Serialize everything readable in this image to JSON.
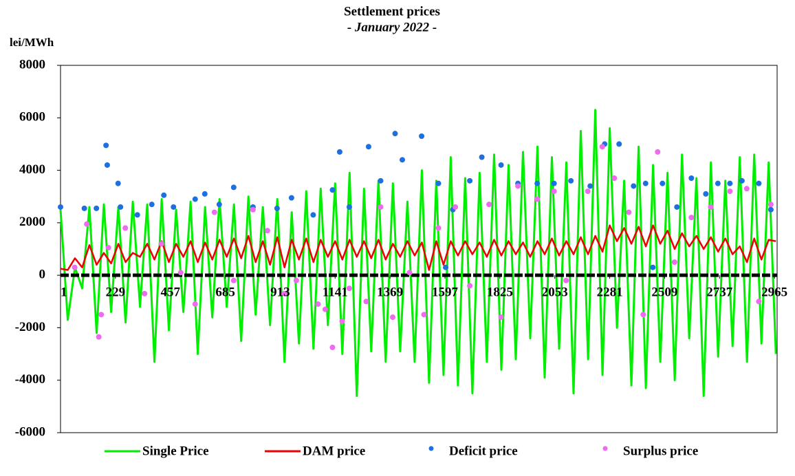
{
  "chart_data": {
    "type": "line",
    "title": "Settlement prices",
    "subtitle": "- January 2022 -",
    "y_label": "lei/MWh",
    "xlim": [
      1,
      2976
    ],
    "xticks": [
      1,
      229,
      457,
      685,
      913,
      1141,
      1369,
      1597,
      1825,
      2053,
      2281,
      2509,
      2737,
      2965
    ],
    "ylim": [
      -6000,
      8000
    ],
    "yticks": [
      -6000,
      -4000,
      -2000,
      0,
      2000,
      4000,
      6000,
      8000
    ],
    "x": [
      1,
      31,
      61,
      91,
      121,
      151,
      181,
      211,
      241,
      271,
      301,
      331,
      361,
      391,
      421,
      451,
      481,
      511,
      541,
      571,
      601,
      631,
      661,
      691,
      721,
      751,
      781,
      811,
      841,
      871,
      901,
      931,
      961,
      991,
      1021,
      1051,
      1081,
      1111,
      1141,
      1171,
      1201,
      1231,
      1261,
      1291,
      1321,
      1351,
      1381,
      1411,
      1441,
      1471,
      1501,
      1531,
      1561,
      1591,
      1621,
      1651,
      1681,
      1711,
      1741,
      1771,
      1801,
      1831,
      1861,
      1891,
      1921,
      1951,
      1981,
      2011,
      2041,
      2071,
      2101,
      2131,
      2161,
      2191,
      2221,
      2251,
      2281,
      2311,
      2341,
      2371,
      2401,
      2431,
      2461,
      2491,
      2521,
      2551,
      2581,
      2611,
      2641,
      2671,
      2701,
      2731,
      2761,
      2791,
      2821,
      2851,
      2881,
      2911,
      2941,
      2971
    ],
    "series": [
      {
        "name": "Single Price",
        "color": "#00ee00",
        "mark": "line",
        "values": [
          2500,
          -1700,
          300,
          -500,
          2600,
          -2200,
          2700,
          -1400,
          2600,
          -1800,
          2800,
          -1200,
          2700,
          -3300,
          2900,
          -2100,
          2500,
          -1400,
          2800,
          -3000,
          2600,
          -1600,
          2900,
          -1200,
          2700,
          -2500,
          3000,
          -1500,
          2600,
          -1900,
          2900,
          -3300,
          2400,
          -2600,
          3200,
          -2800,
          3300,
          -1900,
          3500,
          -3000,
          3900,
          -4600,
          3300,
          -2900,
          3600,
          -3300,
          3500,
          -2900,
          2800,
          -3300,
          4000,
          -4100,
          3600,
          -3800,
          4500,
          -4200,
          3700,
          -4500,
          3900,
          -3300,
          4600,
          -3600,
          4200,
          -3200,
          4700,
          -2400,
          4900,
          -3900,
          4500,
          -2800,
          4300,
          -4500,
          5500,
          -3200,
          6300,
          -3800,
          5600,
          -2000,
          3600,
          -4200,
          4900,
          -4300,
          4200,
          -3300,
          3900,
          -4000,
          4600,
          -2400,
          3700,
          -4600,
          4300,
          -3100,
          3600,
          -2700,
          4500,
          -3300,
          4600,
          -2600,
          4300,
          -3000
        ]
      },
      {
        "name": "DAM price",
        "color": "#ee0000",
        "mark": "line",
        "values": [
          250,
          200,
          650,
          300,
          1150,
          400,
          850,
          450,
          1200,
          500,
          850,
          700,
          1200,
          600,
          1300,
          500,
          1200,
          700,
          1300,
          500,
          1250,
          600,
          1350,
          700,
          1400,
          650,
          1500,
          500,
          1300,
          400,
          1450,
          300,
          1350,
          600,
          1400,
          500,
          1350,
          700,
          1300,
          600,
          1350,
          700,
          1300,
          650,
          1350,
          600,
          1200,
          700,
          1300,
          750,
          1250,
          200,
          1300,
          400,
          1300,
          750,
          1300,
          800,
          1250,
          700,
          1350,
          750,
          1300,
          800,
          1250,
          700,
          1300,
          800,
          1400,
          750,
          1300,
          800,
          1450,
          800,
          1500,
          900,
          1900,
          1300,
          1800,
          1200,
          1850,
          1100,
          1900,
          1200,
          1700,
          1000,
          1600,
          1100,
          1500,
          1000,
          1450,
          900,
          1400,
          800,
          1100,
          500,
          1400,
          600,
          1350,
          1300
        ]
      },
      {
        "name": "Deficit price",
        "color": "#1e6fe0",
        "mark": "dot",
        "x": [
          1,
          100,
          150,
          190,
          195,
          240,
          250,
          320,
          380,
          430,
          470,
          560,
          600,
          660,
          720,
          800,
          900,
          960,
          1050,
          1130,
          1160,
          1200,
          1280,
          1330,
          1390,
          1420,
          1500,
          1570,
          1630,
          1700,
          1750,
          1830,
          1900,
          1980,
          2050,
          2120,
          2200,
          2260,
          2320,
          2380,
          2430,
          2500,
          2560,
          2620,
          2680,
          2730,
          2780,
          2830,
          2900,
          2950,
          1600,
          2460
        ],
        "values": [
          2600,
          2550,
          2550,
          4950,
          4200,
          3500,
          2600,
          2300,
          2700,
          3050,
          2600,
          2900,
          3100,
          2700,
          3350,
          2600,
          2550,
          2950,
          2300,
          3250,
          4700,
          2600,
          4900,
          3600,
          5400,
          4400,
          5300,
          3500,
          2500,
          3600,
          4500,
          4200,
          3500,
          3500,
          3500,
          3600,
          3400,
          5000,
          5000,
          3400,
          3500,
          3500,
          2600,
          3700,
          3100,
          3500,
          3500,
          3600,
          3500,
          2500,
          300,
          300
        ]
      },
      {
        "name": "Surplus price",
        "color": "#ee6aee",
        "mark": "dot",
        "x": [
          60,
          110,
          160,
          170,
          200,
          270,
          350,
          420,
          500,
          560,
          640,
          720,
          800,
          860,
          930,
          980,
          1070,
          1100,
          1130,
          1170,
          1200,
          1270,
          1330,
          1380,
          1450,
          1510,
          1570,
          1640,
          1700,
          1780,
          1830,
          1900,
          1980,
          2050,
          2100,
          2190,
          2250,
          2300,
          2360,
          2420,
          2480,
          2550,
          2620,
          2700,
          2780,
          2850,
          2900,
          2950
        ],
        "values": [
          300,
          1950,
          -2350,
          -1500,
          1050,
          1800,
          -700,
          1200,
          100,
          -1100,
          2400,
          -200,
          2500,
          1700,
          -700,
          -200,
          -1100,
          -1300,
          -2750,
          -1750,
          -500,
          -1000,
          2600,
          -1600,
          100,
          -1500,
          1800,
          2600,
          -400,
          2700,
          -1600,
          3400,
          2900,
          3200,
          -200,
          3200,
          4900,
          3700,
          2400,
          -1500,
          4700,
          500,
          2200,
          2600,
          3200,
          3300,
          -1000,
          2700
        ]
      }
    ]
  }
}
